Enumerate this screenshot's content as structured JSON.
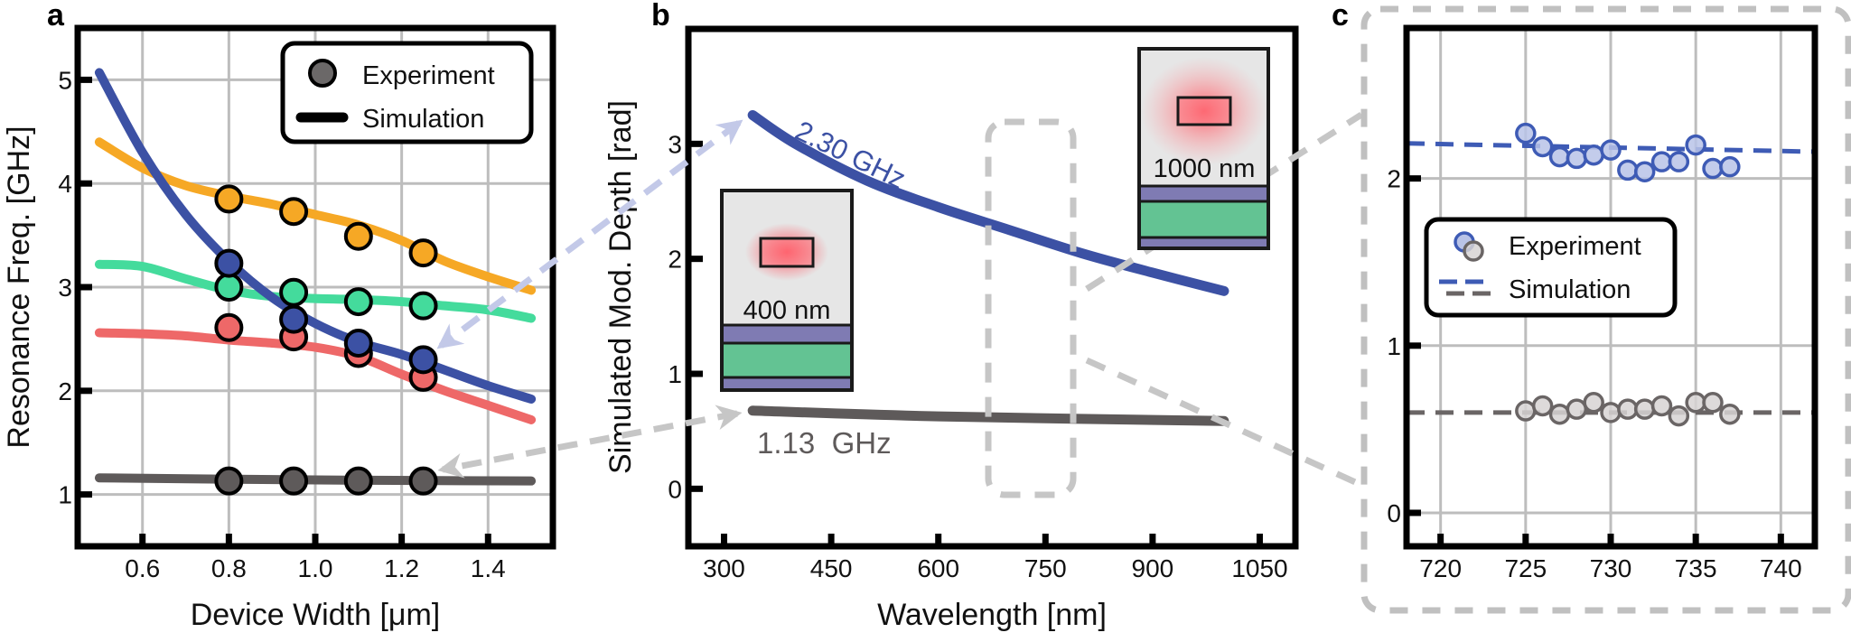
{
  "panel_labels": {
    "a": "a",
    "b": "b",
    "c": "c"
  },
  "chart_data": [
    {
      "panel": "a",
      "type": "line",
      "xlabel": "Device Width [μm]",
      "ylabel": "Resonance Freq. [GHz]",
      "xlim": [
        0.45,
        1.55
      ],
      "ylim": [
        0.5,
        5.5
      ],
      "xticks": [
        0.6,
        0.8,
        1.0,
        1.2,
        1.4
      ],
      "xtick_labels": [
        "0.6",
        "0.8",
        "1.0",
        "1.2",
        "1.4"
      ],
      "yticks": [
        1,
        2,
        3,
        4,
        5
      ],
      "ytick_labels": [
        "1",
        "2",
        "3",
        "4",
        "5"
      ],
      "grid": true,
      "legend": {
        "position": "top-right",
        "entries": [
          {
            "label": "Experiment",
            "marker": "circle",
            "color": "#6b6868"
          },
          {
            "label": "Simulation",
            "marker": "line",
            "color": "#000000"
          }
        ]
      },
      "series": [
        {
          "color": "#f6a825",
          "simulation": {
            "x": [
              0.5,
              0.6,
              0.7,
              0.8,
              0.9,
              1.0,
              1.1,
              1.2,
              1.3,
              1.4,
              1.5
            ],
            "y": [
              4.4,
              4.15,
              3.98,
              3.88,
              3.8,
              3.7,
              3.6,
              3.45,
              3.25,
              3.1,
              2.97
            ]
          },
          "experiment": {
            "x": [
              0.8,
              0.95,
              1.1,
              1.25
            ],
            "y": [
              3.85,
              3.73,
              3.49,
              3.33
            ]
          }
        },
        {
          "color": "#44db9c",
          "simulation": {
            "x": [
              0.5,
              0.6,
              0.7,
              0.8,
              0.9,
              1.0,
              1.1,
              1.2,
              1.3,
              1.4,
              1.5
            ],
            "y": [
              3.22,
              3.2,
              3.08,
              2.97,
              2.91,
              2.89,
              2.88,
              2.86,
              2.82,
              2.78,
              2.7
            ]
          },
          "experiment": {
            "x": [
              0.8,
              0.95,
              1.1,
              1.25
            ],
            "y": [
              3.0,
              2.95,
              2.86,
              2.82
            ]
          }
        },
        {
          "color": "#ee6868",
          "simulation": {
            "x": [
              0.5,
              0.6,
              0.7,
              0.8,
              0.9,
              1.0,
              1.1,
              1.2,
              1.3,
              1.4,
              1.5
            ],
            "y": [
              2.56,
              2.55,
              2.53,
              2.49,
              2.46,
              2.42,
              2.33,
              2.16,
              2.0,
              1.86,
              1.72
            ]
          },
          "experiment": {
            "x": [
              0.8,
              0.95,
              1.1,
              1.25
            ],
            "y": [
              2.61,
              2.52,
              2.36,
              2.13
            ]
          }
        },
        {
          "color": "#3c51a4",
          "simulation": {
            "x": [
              0.5,
              0.6,
              0.7,
              0.8,
              0.9,
              1.0,
              1.1,
              1.2,
              1.3,
              1.4,
              1.5
            ],
            "y": [
              5.07,
              4.3,
              3.7,
              3.25,
              2.9,
              2.65,
              2.47,
              2.35,
              2.2,
              2.05,
              1.92
            ]
          },
          "experiment": {
            "x": [
              0.8,
              0.95,
              1.1,
              1.25
            ],
            "y": [
              3.23,
              2.69,
              2.46,
              2.3
            ]
          }
        },
        {
          "color": "#5e5a5a",
          "simulation": {
            "x": [
              0.5,
              1.0,
              1.5
            ],
            "y": [
              1.16,
              1.14,
              1.13
            ]
          },
          "experiment": {
            "x": [
              0.8,
              0.95,
              1.1,
              1.25
            ],
            "y": [
              1.13,
              1.13,
              1.13,
              1.13
            ]
          }
        }
      ]
    },
    {
      "panel": "b",
      "type": "line",
      "xlabel": "Wavelength [nm]",
      "ylabel": "Simulated Mod. Depth [rad]",
      "xlim": [
        250,
        1100
      ],
      "ylim": [
        -0.5,
        4.0
      ],
      "xticks": [
        300,
        450,
        600,
        750,
        900,
        1050
      ],
      "xtick_labels": [
        "300",
        "450",
        "600",
        "750",
        "900",
        "1050"
      ],
      "yticks": [
        0,
        1,
        2,
        3
      ],
      "ytick_labels": [
        "0",
        "1",
        "2",
        "3"
      ],
      "grid": false,
      "series": [
        {
          "name": "2.30 GHz",
          "color": "#3c51a4",
          "x": [
            340,
            400,
            500,
            600,
            700,
            800,
            900,
            1000
          ],
          "y": [
            3.25,
            3.0,
            2.68,
            2.45,
            2.25,
            2.05,
            1.88,
            1.72
          ]
        },
        {
          "name": "1.13  GHz",
          "color": "#5e5a5a",
          "x": [
            340,
            600,
            1000
          ],
          "y": [
            0.68,
            0.63,
            0.59
          ]
        }
      ],
      "insets": [
        {
          "label": "400 nm",
          "layer_colors": {
            "cladding": "#e6e6e6",
            "mode": "#ff4d5a",
            "top_layer": "#7f7bb3",
            "middle_layer": "#63c393",
            "bottom_layer": "#7f7bb3"
          }
        },
        {
          "label": "1000 nm",
          "layer_colors": {
            "cladding": "#e6e6e6",
            "mode": "#ff4d5a",
            "top_layer": "#7f7bb3",
            "middle_layer": "#63c393",
            "bottom_layer": "#7f7bb3"
          }
        }
      ],
      "highlight_range": [
        680,
        790
      ]
    },
    {
      "panel": "c",
      "type": "scatter",
      "xlabel": "",
      "ylabel": "",
      "xlim": [
        718,
        742
      ],
      "ylim": [
        -0.2,
        2.9
      ],
      "xticks": [
        720,
        725,
        730,
        735,
        740
      ],
      "xtick_labels": [
        "720",
        "725",
        "730",
        "735",
        "740"
      ],
      "yticks": [
        0,
        1,
        2
      ],
      "ytick_labels": [
        "0",
        "1",
        "2"
      ],
      "grid": true,
      "legend": {
        "position": "center-left",
        "entries": [
          {
            "label": "Experiment",
            "marker": "open-circle"
          },
          {
            "label": "Simulation",
            "marker": "dashed-line"
          }
        ]
      },
      "series": [
        {
          "stroke": "#3e5bb5",
          "fill": "#b9c3e7",
          "experiment": {
            "x": [
              725,
              726,
              727,
              728,
              729,
              730,
              731,
              732,
              733,
              734,
              735,
              736,
              737
            ],
            "y": [
              2.27,
              2.19,
              2.13,
              2.12,
              2.14,
              2.17,
              2.05,
              2.04,
              2.1,
              2.1,
              2.2,
              2.06,
              2.07
            ]
          },
          "simulation": {
            "x": [
              718,
              742
            ],
            "y": [
              2.21,
              2.16
            ]
          }
        },
        {
          "stroke": "#6a6565",
          "fill": "#d7d4d4",
          "experiment": {
            "x": [
              725,
              726,
              727,
              728,
              729,
              730,
              731,
              732,
              733,
              734,
              735,
              736,
              737
            ],
            "y": [
              0.61,
              0.64,
              0.59,
              0.62,
              0.66,
              0.6,
              0.62,
              0.62,
              0.64,
              0.58,
              0.66,
              0.66,
              0.59
            ]
          },
          "simulation": {
            "x": [
              718,
              742
            ],
            "y": [
              0.6,
              0.6
            ]
          }
        }
      ]
    }
  ],
  "connector_colors": {
    "blue": "#c3c9e8",
    "gray": "#c6c6c6"
  }
}
